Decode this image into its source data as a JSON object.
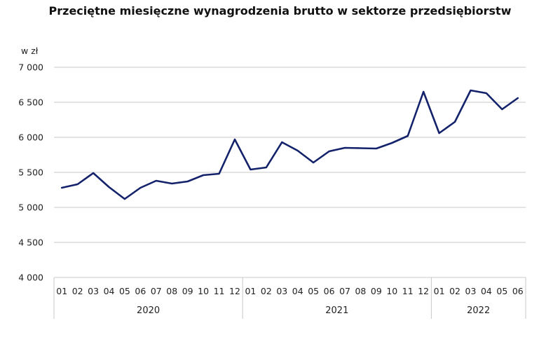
{
  "chart_data": {
    "type": "line",
    "title": "Przeciętne miesięczne wynagrodzenia brutto w sektorze przedsiębiorstw",
    "ylabel": "w zł",
    "xlabel": "",
    "ylim": [
      4000,
      7000
    ],
    "yticks": [
      4000,
      4500,
      5000,
      5500,
      6000,
      6500,
      7000
    ],
    "ytick_labels": [
      "4 000",
      "4 500",
      "5 000",
      "5 500",
      "6 000",
      "6 500",
      "7 000"
    ],
    "grid": "horizontal",
    "legend": "none",
    "line_color": "#13226b",
    "grid_color": "#c8c8c8",
    "groups": [
      {
        "label": "2020",
        "months": [
          "01",
          "02",
          "03",
          "04",
          "05",
          "06",
          "07",
          "08",
          "09",
          "10",
          "11",
          "12"
        ]
      },
      {
        "label": "2021",
        "months": [
          "01",
          "02",
          "03",
          "04",
          "05",
          "06",
          "07",
          "08",
          "09",
          "10",
          "11",
          "12"
        ]
      },
      {
        "label": "2022",
        "months": [
          "01",
          "02",
          "03",
          "04",
          "05",
          "06"
        ]
      }
    ],
    "series": [
      {
        "values": [
          5280,
          5330,
          5490,
          5290,
          5120,
          5280,
          5380,
          5340,
          5370,
          5460,
          5480,
          5970,
          5540,
          5570,
          5930,
          5810,
          5640,
          5800,
          5850,
          5845,
          5840,
          5920,
          6020,
          6650,
          6060,
          6220,
          6670,
          6630,
          6400,
          6560
        ]
      }
    ]
  }
}
